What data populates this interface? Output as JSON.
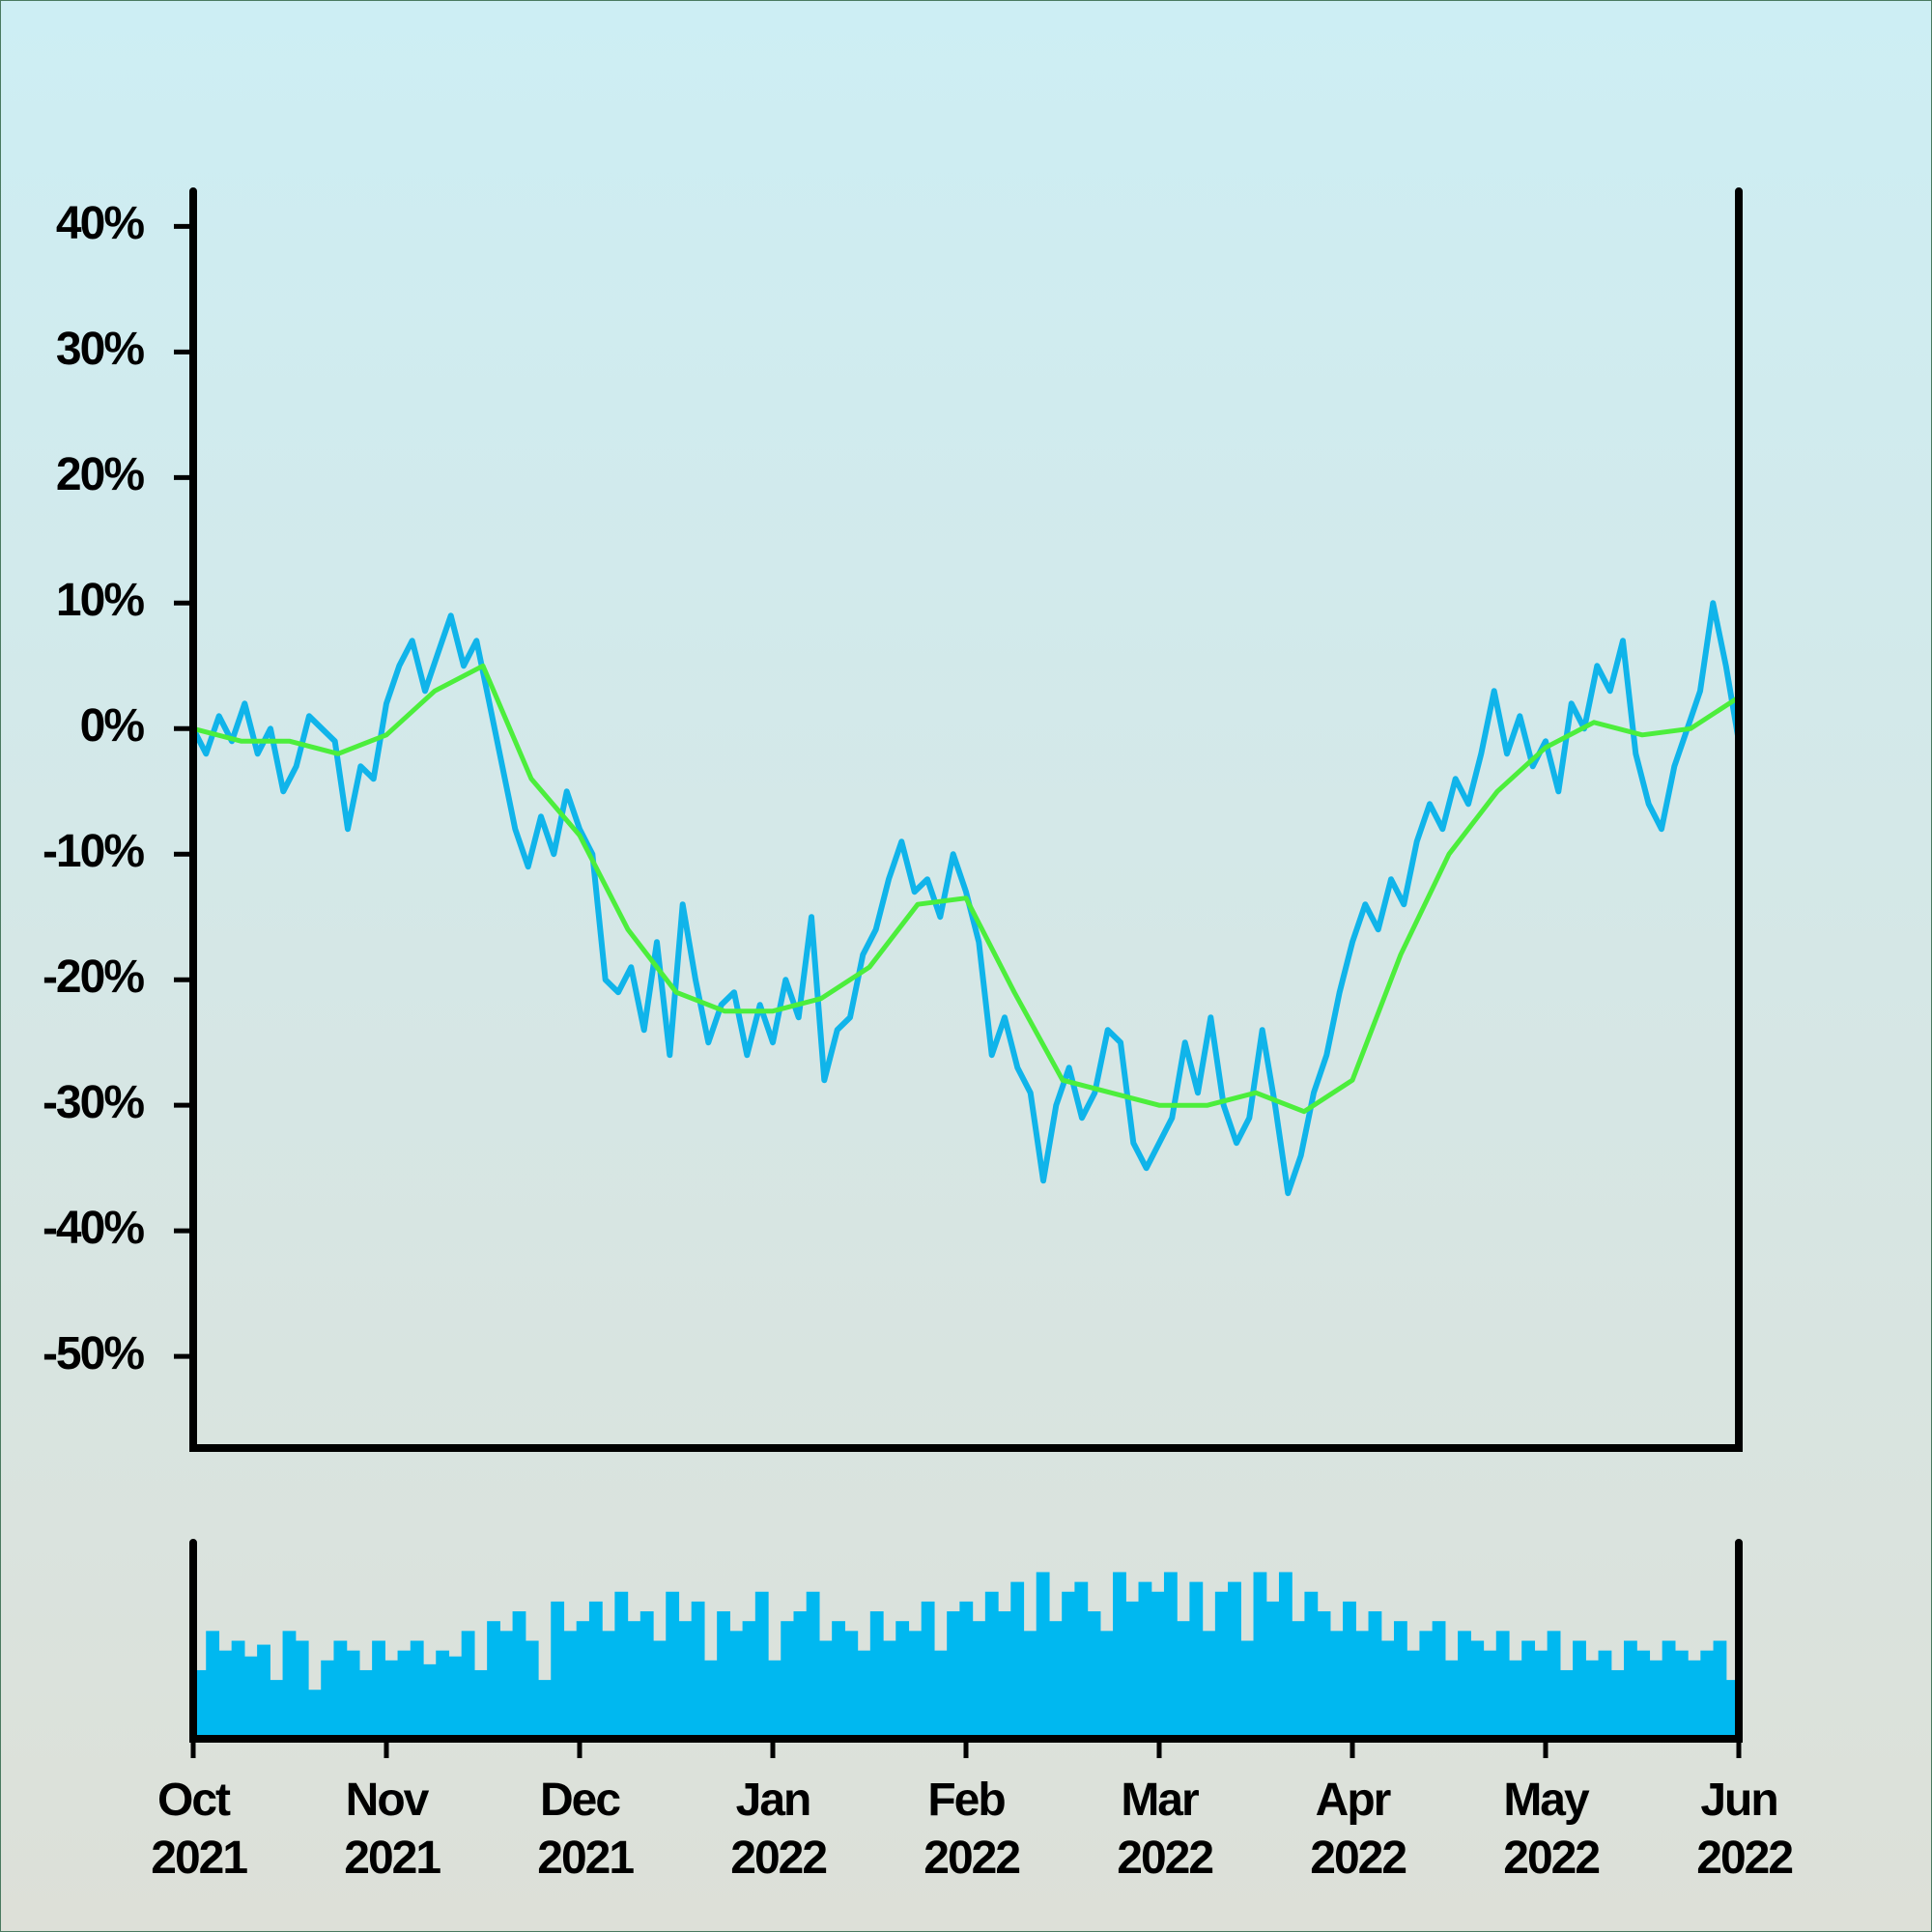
{
  "chart_data": [
    {
      "type": "line",
      "ylim": [
        -57.3,
        42.8
      ],
      "yticks": [
        {
          "value": -50,
          "label": "-50%"
        },
        {
          "value": -40,
          "label": "-40%"
        },
        {
          "value": -30,
          "label": "-30%"
        },
        {
          "value": -20,
          "label": "-20%"
        },
        {
          "value": -10,
          "label": "-10%"
        },
        {
          "value": 0,
          "label": "0%"
        },
        {
          "value": 10,
          "label": "10%"
        },
        {
          "value": 20,
          "label": "20%"
        },
        {
          "value": 30,
          "label": "30%"
        },
        {
          "value": 40,
          "label": "40%"
        }
      ],
      "series": [
        {
          "color": "#10b4ea",
          "values": [
            0,
            -2,
            1,
            -1,
            2,
            -2,
            0,
            -5,
            -3,
            1,
            0,
            -1,
            -8,
            -3,
            -4,
            2,
            5,
            7,
            3,
            6,
            9,
            5,
            7,
            2,
            -3,
            -8,
            -11,
            -7,
            -10,
            -5,
            -8,
            -10,
            -20,
            -21,
            -19,
            -24,
            -17,
            -26,
            -14,
            -20,
            -25,
            -22,
            -21,
            -26,
            -22,
            -25,
            -20,
            -23,
            -15,
            -28,
            -24,
            -23,
            -18,
            -16,
            -12,
            -9,
            -13,
            -12,
            -15,
            -10,
            -13,
            -17,
            -26,
            -23,
            -27,
            -29,
            -36,
            -30,
            -27,
            -31,
            -29,
            -24,
            -25,
            -33,
            -35,
            -33,
            -31,
            -25,
            -29,
            -23,
            -30,
            -33,
            -31,
            -24,
            -30,
            -37,
            -34,
            -29,
            -26,
            -21,
            -17,
            -14,
            -16,
            -12,
            -14,
            -9,
            -6,
            -8,
            -4,
            -6,
            -2,
            3,
            -2,
            1,
            -3,
            -1,
            -5,
            2,
            0,
            5,
            3,
            7,
            -2,
            -6,
            -8,
            -3,
            0,
            3,
            10,
            5,
            -1
          ]
        },
        {
          "color": "#4cee3c",
          "values": [
            0,
            -1,
            -1,
            -2,
            -0.5,
            3,
            5,
            -4,
            -8.5,
            -16,
            -21,
            -22.5,
            -22.5,
            -21.5,
            -19,
            -14,
            -13.5,
            -21,
            -28,
            -29,
            -30,
            -30,
            -29,
            -30.5,
            -28,
            -18,
            -10,
            -5,
            -1.5,
            0.5,
            -0.5,
            0,
            2.5
          ]
        }
      ]
    },
    {
      "type": "bar",
      "color": "#00b8f0",
      "ylim": [
        0,
        100
      ],
      "values": [
        35,
        55,
        45,
        50,
        42,
        48,
        30,
        55,
        50,
        25,
        40,
        50,
        45,
        35,
        50,
        40,
        45,
        50,
        38,
        45,
        42,
        55,
        35,
        60,
        55,
        65,
        50,
        30,
        70,
        55,
        60,
        70,
        55,
        75,
        60,
        65,
        50,
        75,
        60,
        70,
        40,
        65,
        55,
        60,
        75,
        40,
        60,
        65,
        75,
        50,
        60,
        55,
        45,
        65,
        50,
        60,
        55,
        70,
        45,
        65,
        70,
        60,
        75,
        65,
        80,
        55,
        85,
        60,
        75,
        80,
        65,
        55,
        85,
        70,
        80,
        75,
        85,
        60,
        80,
        55,
        75,
        80,
        50,
        85,
        70,
        85,
        60,
        75,
        65,
        55,
        70,
        55,
        65,
        50,
        60,
        45,
        55,
        60,
        40,
        55,
        50,
        45,
        55,
        40,
        50,
        45,
        55,
        35,
        50,
        40,
        45,
        35,
        50,
        45,
        40,
        50,
        45,
        40,
        45,
        50,
        30
      ],
      "xlim": [
        0,
        8
      ],
      "xticks": [
        {
          "value": 0,
          "label": "Oct 2021"
        },
        {
          "value": 1,
          "label": "Nov 2021"
        },
        {
          "value": 2,
          "label": "Dec 2021"
        },
        {
          "value": 3,
          "label": "Jan 2022"
        },
        {
          "value": 4,
          "label": "Feb 2022"
        },
        {
          "value": 5,
          "label": "Mar 2022"
        },
        {
          "value": 6,
          "label": "Apr 2022"
        },
        {
          "value": 7,
          "label": "May 2022"
        },
        {
          "value": 8,
          "label": "Jun 2022"
        }
      ]
    }
  ]
}
